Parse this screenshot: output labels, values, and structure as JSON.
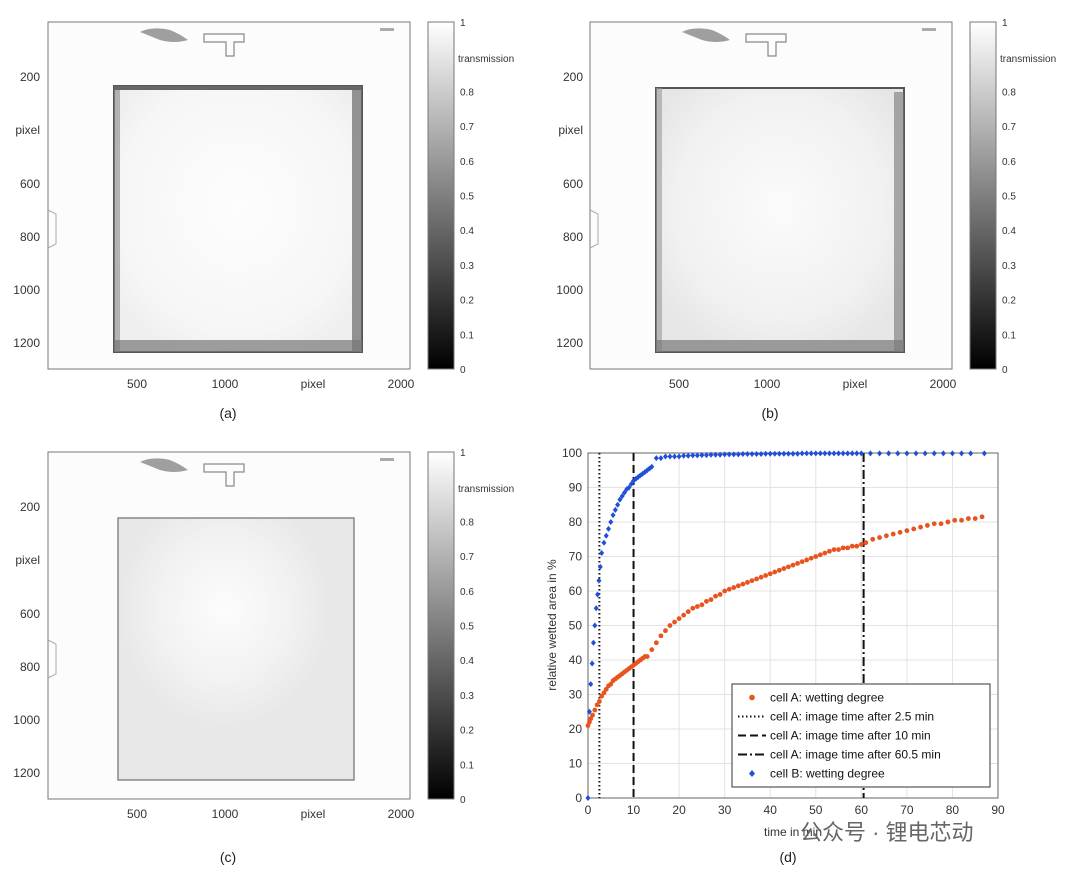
{
  "colors": {
    "cell_a": "#e8541e",
    "cell_b": "#1f4fd8",
    "grid": "#e3e3e3",
    "axis": "#555555",
    "vline": "#111111"
  },
  "image_panels": [
    {
      "label": "(a)",
      "x_ticks": [
        "500",
        "1000",
        "pixel",
        "2000"
      ],
      "y_ticks": [
        "200",
        "pixel",
        "600",
        "800",
        "1000",
        "1200"
      ],
      "colorbar_ticks": [
        "1",
        "0.8",
        "0.7",
        "0.6",
        "0.5",
        "0.4",
        "0.3",
        "0.2",
        "0.1",
        "0"
      ],
      "colorbar_label": "transmission"
    },
    {
      "label": "(b)",
      "x_ticks": [
        "500",
        "1000",
        "pixel",
        "2000"
      ],
      "y_ticks": [
        "200",
        "pixel",
        "600",
        "800",
        "1000",
        "1200"
      ],
      "colorbar_ticks": [
        "1",
        "0.8",
        "0.7",
        "0.6",
        "0.5",
        "0.4",
        "0.3",
        "0.2",
        "0.1",
        "0"
      ],
      "colorbar_label": "transmission"
    },
    {
      "label": "(c)",
      "x_ticks": [
        "500",
        "1000",
        "pixel",
        "2000"
      ],
      "y_ticks": [
        "200",
        "pixel",
        "600",
        "800",
        "1000",
        "1200"
      ],
      "colorbar_ticks": [
        "1",
        "0.8",
        "0.7",
        "0.6",
        "0.5",
        "0.4",
        "0.3",
        "0.2",
        "0.1",
        "0"
      ],
      "colorbar_label": "transmission"
    }
  ],
  "chart_data": {
    "type": "scatter",
    "label": "(d)",
    "xlabel": "time in min",
    "ylabel": "relative wetted area in %",
    "xlim": [
      0,
      90
    ],
    "ylim": [
      0,
      100
    ],
    "x_ticks": [
      0,
      10,
      20,
      30,
      40,
      50,
      60,
      70,
      80,
      90
    ],
    "y_ticks": [
      0,
      10,
      20,
      30,
      40,
      50,
      60,
      70,
      80,
      90,
      100
    ],
    "grid": true,
    "legend_position": "bottom-right",
    "series": [
      {
        "name": "cell A: wetting degree",
        "marker": "dot",
        "color": "#e8541e",
        "x": [
          0,
          0.3,
          0.6,
          1,
          1.5,
          2,
          2.5,
          3,
          3.5,
          4,
          4.5,
          5,
          5.5,
          6,
          6.5,
          7,
          7.5,
          8,
          8.5,
          9,
          9.5,
          10,
          10.5,
          11,
          11.5,
          12,
          12.5,
          13,
          14,
          15,
          16,
          17,
          18,
          19,
          20,
          21,
          22,
          23,
          24,
          25,
          26,
          27,
          28,
          29,
          30,
          31,
          32,
          33,
          34,
          35,
          36,
          37,
          38,
          39,
          40,
          41,
          42,
          43,
          44,
          45,
          46,
          47,
          48,
          49,
          50,
          51,
          52,
          53,
          54,
          55,
          56,
          57,
          58,
          59,
          60,
          61,
          62.5,
          64,
          65.5,
          67,
          68.5,
          70,
          71.5,
          73,
          74.5,
          76,
          77.5,
          79,
          80.5,
          82,
          83.5,
          85,
          86.5
        ],
        "y": [
          21,
          22,
          23,
          24,
          25.5,
          27,
          28,
          29.5,
          30.5,
          31.5,
          32.5,
          33,
          34,
          34.5,
          35,
          35.5,
          36,
          36.5,
          37,
          37.5,
          38,
          38.5,
          39,
          39.5,
          40,
          40.5,
          41,
          41,
          43,
          45,
          47,
          48.5,
          50,
          51,
          52,
          53,
          54,
          55,
          55.5,
          56,
          57,
          57.5,
          58.5,
          59,
          60,
          60.5,
          61,
          61.5,
          62,
          62.5,
          63,
          63.5,
          64,
          64.5,
          65,
          65.5,
          66,
          66.5,
          67,
          67.5,
          68,
          68.5,
          69,
          69.5,
          70,
          70.5,
          71,
          71.5,
          72,
          72,
          72.5,
          72.5,
          73,
          73,
          73.5,
          74,
          75,
          75.5,
          76,
          76.5,
          77,
          77.5,
          78,
          78.5,
          79,
          79.5,
          79.5,
          80,
          80.5,
          80.5,
          81,
          81,
          81.5
        ]
      },
      {
        "name": "cell B: wetting degree",
        "marker": "diamond",
        "color": "#1f4fd8",
        "x": [
          0,
          0.3,
          0.6,
          0.9,
          1.2,
          1.5,
          1.8,
          2.1,
          2.4,
          2.7,
          3,
          3.5,
          4,
          4.5,
          5,
          5.5,
          6,
          6.5,
          7,
          7.5,
          8,
          8.5,
          9,
          9.5,
          10,
          10.5,
          11,
          11.5,
          12,
          12.5,
          13,
          13.5,
          14,
          15,
          16,
          17,
          18,
          19,
          20,
          21,
          22,
          23,
          24,
          25,
          26,
          27,
          28,
          29,
          30,
          31,
          32,
          33,
          34,
          35,
          36,
          37,
          38,
          39,
          40,
          41,
          42,
          43,
          44,
          45,
          46,
          47,
          48,
          49,
          50,
          51,
          52,
          53,
          54,
          55,
          56,
          57,
          58,
          59,
          60,
          62,
          64,
          66,
          68,
          70,
          72,
          74,
          76,
          78,
          80,
          82,
          84,
          87
        ],
        "y": [
          0,
          25,
          33,
          39,
          45,
          50,
          55,
          59,
          63,
          67,
          71,
          74,
          76,
          78,
          80,
          82,
          83.5,
          85,
          86.5,
          87.5,
          88.5,
          89.5,
          90,
          91,
          92,
          92.5,
          93,
          93.5,
          94,
          94.5,
          95,
          95.5,
          96,
          98.5,
          98.5,
          99,
          99,
          99,
          99,
          99.2,
          99.2,
          99.3,
          99.3,
          99.4,
          99.4,
          99.5,
          99.5,
          99.5,
          99.6,
          99.6,
          99.6,
          99.6,
          99.7,
          99.7,
          99.7,
          99.7,
          99.7,
          99.8,
          99.8,
          99.8,
          99.8,
          99.8,
          99.8,
          99.8,
          99.8,
          99.9,
          99.9,
          99.9,
          99.9,
          99.9,
          99.9,
          99.9,
          99.9,
          99.9,
          99.9,
          99.9,
          99.9,
          99.9,
          99.9,
          99.9,
          99.9,
          99.9,
          99.9,
          99.9,
          99.9,
          99.9,
          99.9,
          99.9,
          99.9,
          99.9,
          99.9,
          99.9
        ]
      }
    ],
    "vlines": [
      {
        "name": "cell A: image time after 2.5 min",
        "x": 2.5,
        "style": "dotted"
      },
      {
        "name": "cell A: image time after 10 min",
        "x": 10,
        "style": "dashed"
      },
      {
        "name": "cell A: image time after 60.5 min",
        "x": 60.5,
        "style": "dashdot"
      }
    ],
    "legend_order": [
      "cell A: wetting degree",
      "cell A: image time after 2.5 min",
      "cell A: image time after 10 min",
      "cell A: image time after 60.5 min",
      "cell B: wetting degree"
    ]
  },
  "watermark": "公众号 · 锂电芯动"
}
